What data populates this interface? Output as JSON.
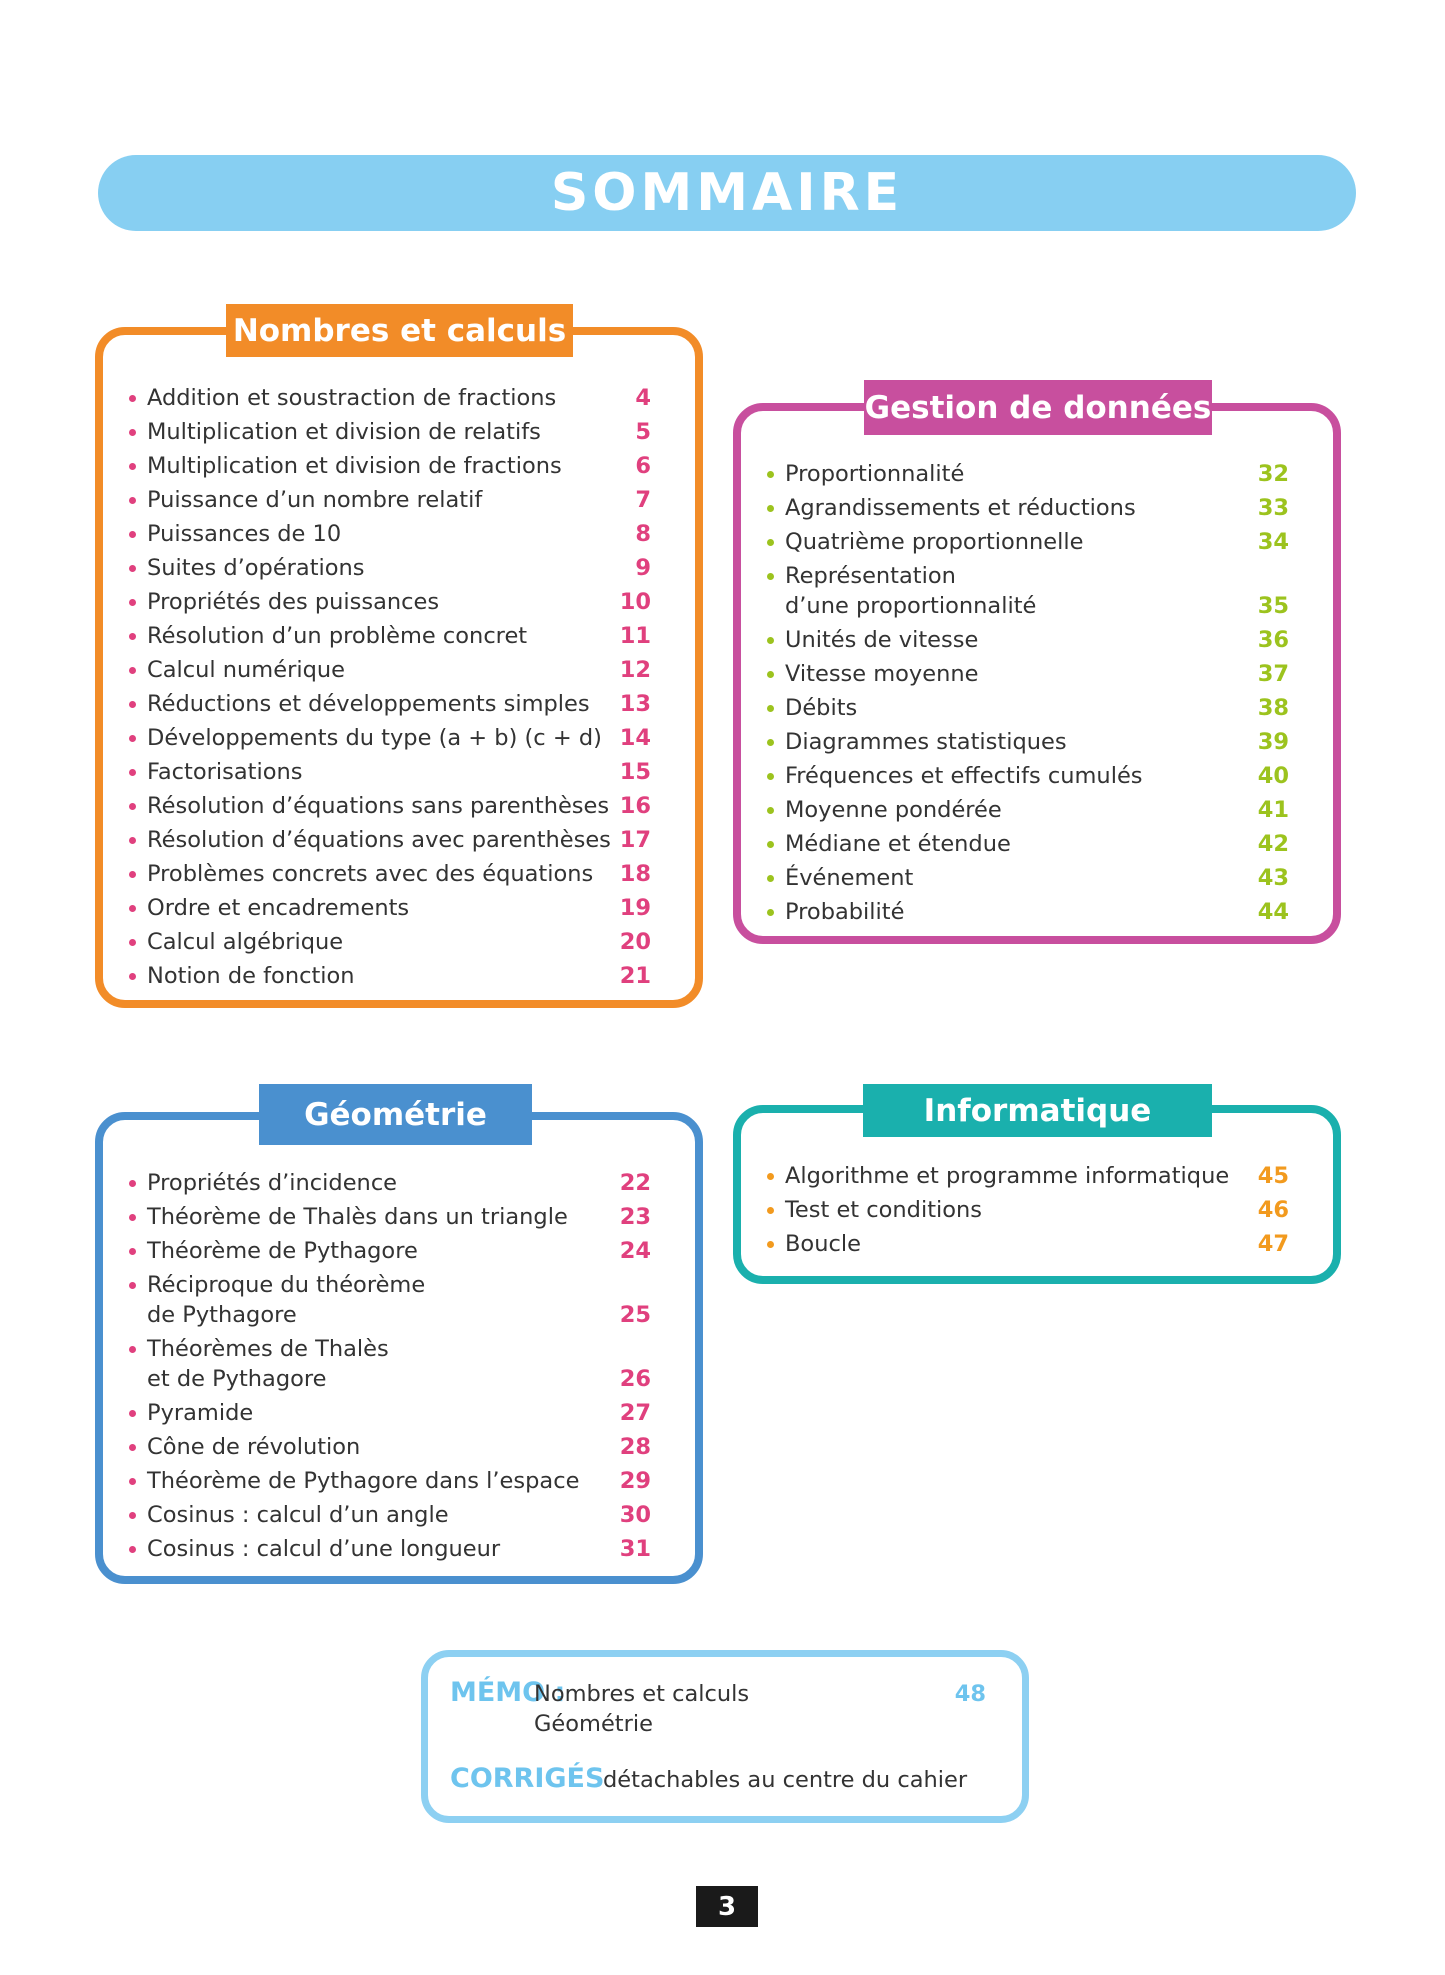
{
  "title": "SOMMAIRE",
  "sections": [
    {
      "title": "Nombres et calculs",
      "items": [
        {
          "label": "Addition et soustraction de fractions",
          "page": 4
        },
        {
          "label": "Multiplication et division de relatifs",
          "page": 5
        },
        {
          "label": "Multiplication et division de fractions",
          "page": 6
        },
        {
          "label": "Puissance d’un nombre relatif",
          "page": 7
        },
        {
          "label": "Puissances de 10",
          "page": 8
        },
        {
          "label": "Suites d’opérations",
          "page": 9
        },
        {
          "label": "Propriétés des puissances",
          "page": 10
        },
        {
          "label": "Résolution d’un problème concret",
          "page": 11
        },
        {
          "label": "Calcul numérique",
          "page": 12
        },
        {
          "label": "Réductions et développements simples",
          "page": 13
        },
        {
          "label": "Développements du type (a + b) (c + d)",
          "page": 14
        },
        {
          "label": "Factorisations",
          "page": 15
        },
        {
          "label": "Résolution d’équations sans parenthèses",
          "page": 16
        },
        {
          "label": "Résolution d’équations avec parenthèses",
          "page": 17
        },
        {
          "label": "Problèmes concrets avec des équations",
          "page": 18
        },
        {
          "label": "Ordre et encadrements",
          "page": 19
        },
        {
          "label": "Calcul algébrique",
          "page": 20
        },
        {
          "label": "Notion de fonction",
          "page": 21
        }
      ]
    },
    {
      "title": "Gestion de données",
      "items": [
        {
          "label": "Proportionnalité",
          "page": 32
        },
        {
          "label": "Agrandissements et réductions",
          "page": 33
        },
        {
          "label": "Quatrième proportionnelle",
          "page": 34
        },
        {
          "label": "Représentation\nd’une proportionnalité",
          "page": 35
        },
        {
          "label": "Unités de vitesse",
          "page": 36
        },
        {
          "label": "Vitesse moyenne",
          "page": 37
        },
        {
          "label": "Débits",
          "page": 38
        },
        {
          "label": "Diagrammes statistiques",
          "page": 39
        },
        {
          "label": "Fréquences et effectifs cumulés",
          "page": 40
        },
        {
          "label": "Moyenne pondérée",
          "page": 41
        },
        {
          "label": "Médiane et étendue",
          "page": 42
        },
        {
          "label": "Événement",
          "page": 43
        },
        {
          "label": "Probabilité",
          "page": 44
        }
      ]
    },
    {
      "title": "Géométrie",
      "items": [
        {
          "label": "Propriétés d’incidence",
          "page": 22
        },
        {
          "label": "Théorème de Thalès dans un triangle",
          "page": 23
        },
        {
          "label": "Théorème de Pythagore",
          "page": 24
        },
        {
          "label": "Réciproque du théorème\nde Pythagore",
          "page": 25
        },
        {
          "label": "Théorèmes de Thalès\net de Pythagore",
          "page": 26
        },
        {
          "label": "Pyramide",
          "page": 27
        },
        {
          "label": "Cône de révolution",
          "page": 28
        },
        {
          "label": "Théorème de Pythagore dans l’espace",
          "page": 29
        },
        {
          "label": "Cosinus : calcul d’un angle",
          "page": 30
        },
        {
          "label": "Cosinus : calcul d’une longueur",
          "page": 31
        }
      ]
    },
    {
      "title": "Informatique",
      "items": [
        {
          "label": "Algorithme et programme informatique",
          "page": 45
        },
        {
          "label": "Test et conditions",
          "page": 46
        },
        {
          "label": "Boucle",
          "page": 47
        }
      ]
    }
  ],
  "memo": {
    "label": "MÉMO :",
    "lines": [
      "Nombres et calculs",
      "Géométrie"
    ],
    "page": 48
  },
  "corriges": {
    "label": "CORRIGÉS",
    "text": "détachables au centre du cahier"
  },
  "page_number": 3
}
